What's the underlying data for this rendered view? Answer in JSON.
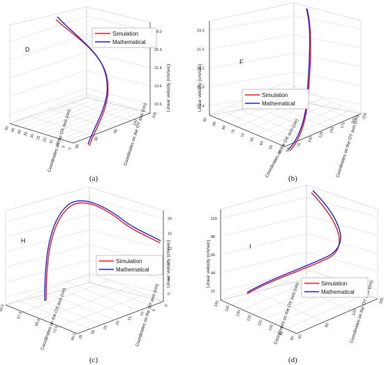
{
  "colors": {
    "simulation": "#e8141c",
    "mathematical": "#1a1ae0",
    "grid": "#c9c9c9",
    "axis": "#333333"
  },
  "chart_data": [
    {
      "panel": "a",
      "caption": "(a)",
      "letter": "D",
      "type": "line",
      "xlabel": "Coordinates on the OX axis (cm)",
      "ylabel": "Coordinates on the OY axis (cm)",
      "zlabel": "Linear velocity (cm/sec)",
      "x_ticks": [
        "50",
        "45",
        "40",
        "35",
        "30",
        "25",
        "20",
        "15",
        "10",
        "5",
        "0"
      ],
      "y_ticks": [
        "85",
        "90",
        "95",
        "100",
        "105"
      ],
      "z_ticks": [
        "16.6",
        "19.6",
        "22.4",
        "25.3",
        "28.0"
      ],
      "legend": {
        "position": "top-right"
      },
      "series": [
        {
          "name": "Simulation",
          "points": [
            [
              15.8,
              86,
              17.0
            ],
            [
              15.5,
              88,
              19.6
            ],
            [
              14.0,
              92,
              22.4
            ],
            [
              10.0,
              97,
              25.3
            ],
            [
              5.0,
              101,
              28.0
            ],
            [
              3.5,
              102,
              29.0
            ]
          ]
        },
        {
          "name": "Mathematical",
          "points": [
            [
              15.8,
              86,
              17.0
            ],
            [
              15.5,
              88,
              19.6
            ],
            [
              14.2,
              92,
              22.6
            ],
            [
              10.3,
              97,
              25.6
            ],
            [
              5.3,
              101,
              28.4
            ],
            [
              3.6,
              102,
              29.4
            ]
          ]
        }
      ]
    },
    {
      "panel": "b",
      "caption": "(b)",
      "letter": "F",
      "type": "line",
      "xlabel": "Coordinates on the OX axis (cm)",
      "ylabel": "Coordinates on the OY axis (cm)",
      "zlabel": "Linear velocity (cm/sec)",
      "x_ticks": [
        "90",
        "85",
        "80",
        "75",
        "70",
        "65",
        "60",
        "55",
        "50"
      ],
      "y_ticks": [
        "50",
        "75",
        "100",
        "125",
        "150",
        "175",
        "200",
        "225"
      ],
      "z_ticks": [
        "14.4",
        "16.8",
        "19.2",
        "21.6",
        "24.0"
      ],
      "legend": {
        "position": "center-right"
      },
      "series": [
        {
          "name": "Simulation",
          "points": [
            [
              83,
              55,
              14.4
            ],
            [
              72,
              80,
              16.8
            ],
            [
              65,
              100,
              19.2
            ],
            [
              60,
              120,
              21.6
            ],
            [
              57,
              150,
              24.0
            ],
            [
              55,
              170,
              25.2
            ]
          ]
        },
        {
          "name": "Mathematical",
          "points": [
            [
              83,
              55,
              14.4
            ],
            [
              72,
              80,
              16.9
            ],
            [
              65,
              100,
              19.3
            ],
            [
              60,
              120,
              21.7
            ],
            [
              57,
              150,
              24.1
            ],
            [
              55,
              170,
              25.4
            ]
          ]
        }
      ]
    },
    {
      "panel": "c",
      "caption": "(c)",
      "letter": "H",
      "type": "line",
      "xlabel": "Coordinates on the OX axis (cm)",
      "ylabel": "Coordinates on the OY axis (cm)",
      "zlabel": "Linear velocity (cm/sec)",
      "x_ticks": [
        "50.0",
        "57.5",
        "65.0",
        "72.5",
        "80.0"
      ],
      "y_ticks": [
        "35",
        "30",
        "25",
        "20",
        "15",
        "10",
        "5",
        "0"
      ],
      "z_ticks": [
        "0",
        "4",
        "8",
        "12",
        "16",
        "20"
      ],
      "legend": {
        "position": "center-right"
      },
      "series": [
        {
          "name": "Simulation",
          "points": [
            [
              76,
              38,
              4.0
            ],
            [
              70,
              34,
              8.0
            ],
            [
              64,
              30,
              12.0
            ],
            [
              58,
              26,
              16.0
            ],
            [
              52,
              20,
              20.0
            ],
            [
              45,
              10,
              18.0
            ],
            [
              40,
              2,
              14.0
            ]
          ]
        },
        {
          "name": "Mathematical",
          "points": [
            [
              76,
              38,
              4.0
            ],
            [
              70,
              34,
              8.1
            ],
            [
              64,
              30,
              12.2
            ],
            [
              58,
              26,
              16.2
            ],
            [
              52,
              20,
              20.2
            ],
            [
              45,
              10,
              18.3
            ],
            [
              40,
              2,
              14.3
            ]
          ]
        }
      ]
    },
    {
      "panel": "d",
      "caption": "(d)",
      "letter": "I",
      "type": "line",
      "xlabel": "Coordinates on the OX axis (cm)",
      "ylabel": "Coordinates on the OY axis (cm)",
      "zlabel": "Linear velocity (cm/sec)",
      "x_ticks": [
        "150",
        "140",
        "130",
        "120",
        "110",
        "100",
        "90",
        "80"
      ],
      "y_ticks": [
        "40",
        "80",
        "120",
        "160"
      ],
      "z_ticks": [
        "22",
        "44",
        "66",
        "88",
        "110"
      ],
      "legend": {
        "position": "bottom-right"
      },
      "series": [
        {
          "name": "Simulation",
          "points": [
            [
              85,
              120,
              22
            ],
            [
              110,
              130,
              44
            ],
            [
              135,
              150,
              66
            ],
            [
              145,
              165,
              80
            ],
            [
              138,
              170,
              95
            ],
            [
              128,
              172,
              110
            ],
            [
              122,
              173,
              120
            ]
          ]
        },
        {
          "name": "Mathematical",
          "points": [
            [
              85,
              120,
              22
            ],
            [
              110,
              130,
              45
            ],
            [
              135,
              150,
              67
            ],
            [
              145,
              165,
              81
            ],
            [
              138,
              170,
              96
            ],
            [
              128,
              172,
              111
            ],
            [
              122,
              173,
              121
            ]
          ]
        }
      ]
    }
  ]
}
